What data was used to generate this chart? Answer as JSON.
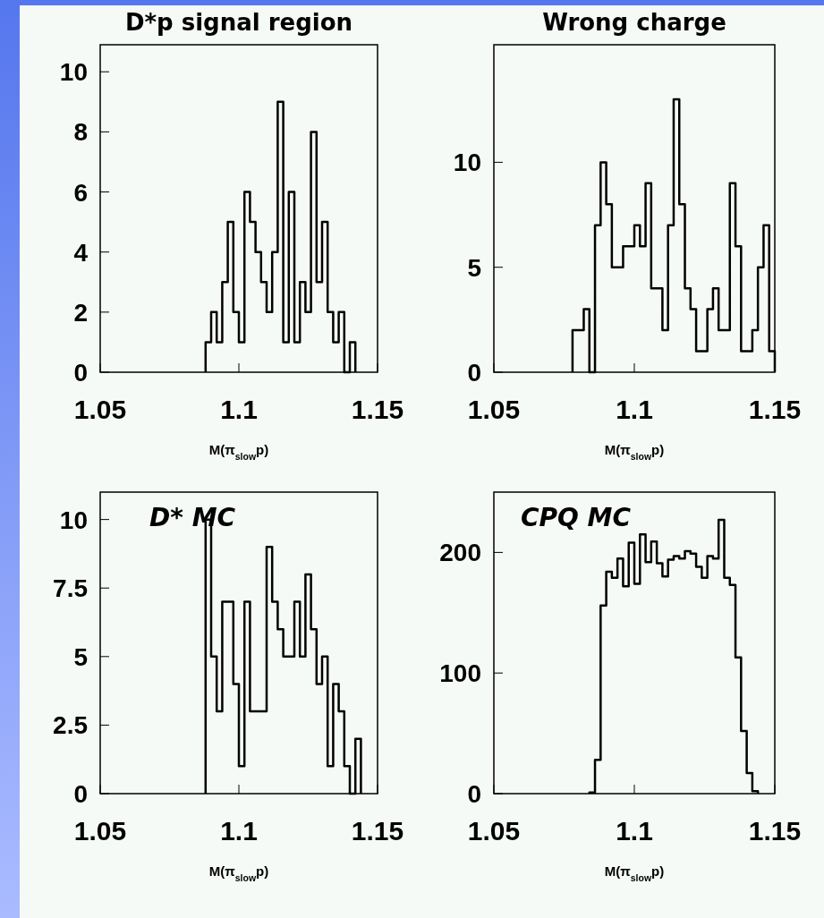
{
  "chart_data": [
    {
      "type": "histogram",
      "title": "D*p signal region",
      "xlabel": "M(π$_{slow}$p)",
      "color": "#000000",
      "xlim": [
        1.05,
        1.15
      ],
      "xticks": [
        1.05,
        1.1,
        1.15
      ],
      "ylim": [
        0,
        10.9
      ],
      "yticks": [
        0,
        2,
        4,
        6,
        8,
        10
      ],
      "bins": [
        1.088,
        1.09,
        1.092,
        1.094,
        1.096,
        1.098,
        1.1,
        1.102,
        1.104,
        1.106,
        1.108,
        1.11,
        1.112,
        1.114,
        1.116,
        1.118,
        1.12,
        1.122,
        1.124,
        1.126,
        1.128,
        1.13,
        1.132,
        1.134,
        1.136,
        1.138,
        1.14,
        1.142
      ],
      "values": [
        1,
        2,
        1,
        3,
        5,
        2,
        1,
        6,
        5,
        4,
        3,
        2,
        4,
        9,
        1,
        6,
        1,
        3,
        2,
        8,
        3,
        5,
        2,
        1,
        2,
        0,
        1
      ]
    },
    {
      "type": "histogram",
      "title": "Wrong charge",
      "xlabel": "M(π$_{slow}$p)",
      "color": "#000000",
      "xlim": [
        1.05,
        1.15
      ],
      "xticks": [
        1.05,
        1.1,
        1.15
      ],
      "ylim": [
        0,
        15.6
      ],
      "yticks": [
        0,
        5,
        10
      ],
      "bins": [
        1.078,
        1.08,
        1.082,
        1.084,
        1.086,
        1.088,
        1.09,
        1.092,
        1.094,
        1.096,
        1.098,
        1.1,
        1.102,
        1.104,
        1.106,
        1.108,
        1.11,
        1.112,
        1.114,
        1.116,
        1.118,
        1.12,
        1.122,
        1.124,
        1.126,
        1.128,
        1.13,
        1.132,
        1.134,
        1.136,
        1.138,
        1.14,
        1.142,
        1.144,
        1.146,
        1.148,
        1.15
      ],
      "values": [
        2,
        2,
        3,
        0,
        7,
        10,
        8,
        5,
        5,
        6,
        6,
        7,
        6,
        9,
        4,
        4,
        2,
        7,
        13,
        8,
        4,
        3,
        1,
        1,
        3,
        4,
        2,
        2,
        9,
        6,
        1,
        1,
        2,
        5,
        7,
        1
      ]
    },
    {
      "type": "histogram",
      "annotations": [
        "D* MC"
      ],
      "xlabel": "M(π$_{slow}$p)",
      "color": "#000000",
      "xlim": [
        1.05,
        1.15
      ],
      "xticks": [
        1.05,
        1.1,
        1.15
      ],
      "ylim": [
        0,
        11
      ],
      "yticks": [
        0,
        2.5,
        5,
        7.5,
        10
      ],
      "bins": [
        1.088,
        1.09,
        1.092,
        1.094,
        1.096,
        1.098,
        1.1,
        1.102,
        1.104,
        1.106,
        1.108,
        1.11,
        1.112,
        1.114,
        1.116,
        1.118,
        1.12,
        1.122,
        1.124,
        1.126,
        1.128,
        1.13,
        1.132,
        1.134,
        1.136,
        1.138,
        1.14,
        1.142,
        1.144
      ],
      "values": [
        10,
        5,
        3,
        7,
        7,
        4,
        1,
        7,
        3,
        3,
        3,
        9,
        7,
        6,
        5,
        5,
        7,
        5,
        8,
        6,
        4,
        5,
        1,
        4,
        3,
        1,
        0,
        2
      ]
    },
    {
      "type": "histogram",
      "annotations": [
        "CPQ MC"
      ],
      "xlabel": "M(π$_{slow}$p)",
      "color": "#000000",
      "xlim": [
        1.05,
        1.15
      ],
      "xticks": [
        1.05,
        1.1,
        1.15
      ],
      "ylim": [
        0,
        250
      ],
      "yticks": [
        0,
        100,
        200
      ],
      "bins": [
        1.084,
        1.086,
        1.088,
        1.09,
        1.092,
        1.094,
        1.096,
        1.098,
        1.1,
        1.102,
        1.104,
        1.106,
        1.108,
        1.11,
        1.112,
        1.114,
        1.116,
        1.118,
        1.12,
        1.122,
        1.124,
        1.126,
        1.128,
        1.13,
        1.132,
        1.134,
        1.136,
        1.138,
        1.14,
        1.142,
        1.144
      ],
      "values": [
        1,
        28,
        156,
        184,
        179,
        195,
        172,
        208,
        174,
        215,
        192,
        209,
        191,
        180,
        194,
        197,
        195,
        201,
        199,
        188,
        179,
        197,
        195,
        227,
        179,
        173,
        113,
        52,
        17,
        2
      ]
    }
  ]
}
